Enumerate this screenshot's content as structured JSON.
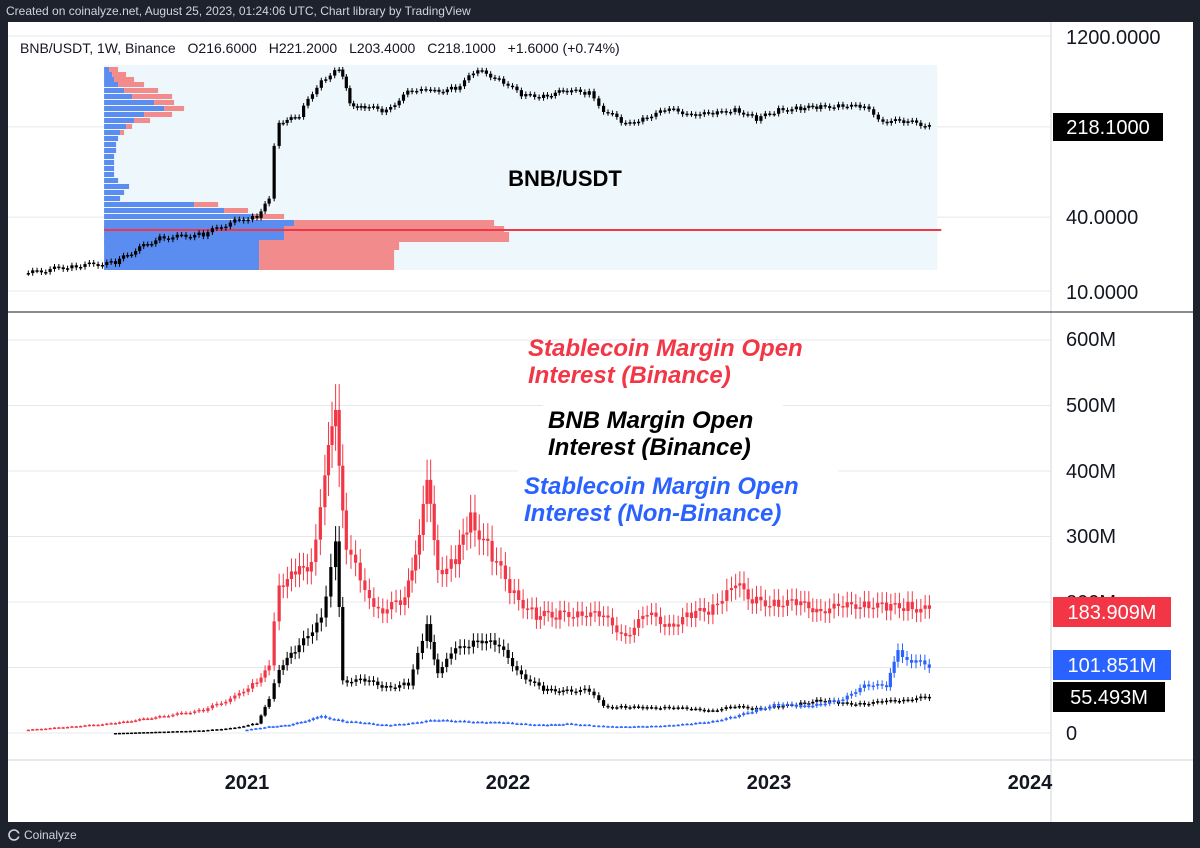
{
  "header": {
    "created_text": "Created on coinalyze.net, August 25, 2023, 01:24:06 UTC, Chart library by TradingView"
  },
  "footer": {
    "brand": "Coinalyze"
  },
  "colors": {
    "red": "#f23645",
    "blue": "#2962ff",
    "black": "#000000",
    "profile_red": "#f28b8b",
    "profile_blue": "#5b8cf0",
    "profile_bg": "#eef7fc"
  },
  "chart_data": [
    {
      "type": "candlestick",
      "title": "BNB/USDT",
      "legend": {
        "symbol": "BNB/USDT, 1W, Binance",
        "o_label": "O",
        "o_value": "216.6000",
        "h_label": "H",
        "h_value": "221.2000",
        "l_label": "L",
        "l_value": "203.4000",
        "c_label": "C",
        "c_value": "218.1000",
        "change": "+1.6000 (+0.74%)"
      },
      "y_scale": "log",
      "y_ticks": [
        {
          "value": 1200,
          "label": "1200.0000"
        },
        {
          "value": 40,
          "label": "40.0000"
        },
        {
          "value": 10,
          "label": "10.0000"
        }
      ],
      "last_price": {
        "value": 218.1,
        "label": "218.1000"
      },
      "x_ticks": [
        "2021",
        "2022",
        "2023",
        "2024"
      ],
      "points": [
        [
          "2020-03-01",
          14
        ],
        [
          "2020-05-01",
          16
        ],
        [
          "2020-07-01",
          17
        ],
        [
          "2020-09-01",
          27
        ],
        [
          "2020-11-01",
          29
        ],
        [
          "2020-12-15",
          37
        ],
        [
          "2021-01-15",
          41
        ],
        [
          "2021-02-01",
          55
        ],
        [
          "2021-02-15",
          240
        ],
        [
          "2021-03-15",
          260
        ],
        [
          "2021-04-15",
          520
        ],
        [
          "2021-05-10",
          650
        ],
        [
          "2021-05-25",
          330
        ],
        [
          "2021-06-15",
          320
        ],
        [
          "2021-07-15",
          290
        ],
        [
          "2021-08-20",
          440
        ],
        [
          "2021-09-15",
          420
        ],
        [
          "2021-10-20",
          450
        ],
        [
          "2021-11-20",
          620
        ],
        [
          "2021-12-20",
          540
        ],
        [
          "2022-01-20",
          390
        ],
        [
          "2022-02-20",
          390
        ],
        [
          "2022-03-25",
          430
        ],
        [
          "2022-04-25",
          410
        ],
        [
          "2022-05-15",
          300
        ],
        [
          "2022-06-15",
          225
        ],
        [
          "2022-07-15",
          265
        ],
        [
          "2022-08-15",
          300
        ],
        [
          "2022-09-15",
          280
        ],
        [
          "2022-10-15",
          275
        ],
        [
          "2022-11-15",
          305
        ],
        [
          "2022-12-15",
          250
        ],
        [
          "2023-01-15",
          300
        ],
        [
          "2023-02-15",
          310
        ],
        [
          "2023-03-15",
          315
        ],
        [
          "2023-04-15",
          330
        ],
        [
          "2023-05-15",
          310
        ],
        [
          "2023-06-10",
          245
        ],
        [
          "2023-07-15",
          240
        ],
        [
          "2023-08-20",
          218
        ]
      ]
    },
    {
      "type": "candlestick",
      "y_ticks": [
        {
          "value": 600,
          "label": "600M"
        },
        {
          "value": 500,
          "label": "500M"
        },
        {
          "value": 400,
          "label": "400M"
        },
        {
          "value": 300,
          "label": "300M"
        },
        {
          "value": 200,
          "label": "200M"
        },
        {
          "value": 0,
          "label": "0"
        }
      ],
      "y_unit": "M",
      "ylim": [
        0,
        630
      ],
      "annotations": [
        {
          "text_line1": "Stablecoin Margin Open",
          "text_line2": "Interest (Binance)",
          "color": "#f23645"
        },
        {
          "text_line1": "BNB Margin Open",
          "text_line2": "Interest (Binance)",
          "color": "#000000"
        },
        {
          "text_line1": "Stablecoin Margin Open",
          "text_line2": "Interest (Non-Binance)",
          "color": "#2962ff"
        }
      ],
      "last_values": [
        {
          "label": "183.909M",
          "value": 183.909,
          "color": "#f23645"
        },
        {
          "label": "101.851M",
          "value": 101.851,
          "color": "#2962ff"
        },
        {
          "label": "55.493M",
          "value": 55.493,
          "color": "#000000"
        }
      ],
      "series": [
        {
          "color": "#f23645",
          "points": [
            [
              "2020-03-01",
              5
            ],
            [
              "2020-05-01",
              10
            ],
            [
              "2020-07-01",
              15
            ],
            [
              "2020-09-01",
              25
            ],
            [
              "2020-11-01",
              35
            ],
            [
              "2020-12-15",
              55
            ],
            [
              "2021-01-15",
              80
            ],
            [
              "2021-02-01",
              100
            ],
            [
              "2021-02-15",
              230
            ],
            [
              "2021-03-10",
              240
            ],
            [
              "2021-04-01",
              260
            ],
            [
              "2021-04-20",
              400
            ],
            [
              "2021-05-05",
              480
            ],
            [
              "2021-05-20",
              290
            ],
            [
              "2021-06-15",
              210
            ],
            [
              "2021-07-10",
              190
            ],
            [
              "2021-08-10",
              200
            ],
            [
              "2021-08-25",
              280
            ],
            [
              "2021-09-10",
              380
            ],
            [
              "2021-09-25",
              250
            ],
            [
              "2021-10-20",
              260
            ],
            [
              "2021-11-10",
              330
            ],
            [
              "2021-12-10",
              270
            ],
            [
              "2022-01-10",
              210
            ],
            [
              "2022-02-10",
              180
            ],
            [
              "2022-03-15",
              180
            ],
            [
              "2022-04-15",
              185
            ],
            [
              "2022-05-15",
              175
            ],
            [
              "2022-06-15",
              150
            ],
            [
              "2022-07-15",
              180
            ],
            [
              "2022-08-15",
              165
            ],
            [
              "2022-09-15",
              180
            ],
            [
              "2022-10-15",
              190
            ],
            [
              "2022-11-10",
              230
            ],
            [
              "2022-12-15",
              200
            ],
            [
              "2023-01-15",
              200
            ],
            [
              "2023-02-15",
              195
            ],
            [
              "2023-03-15",
              190
            ],
            [
              "2023-04-15",
              190
            ],
            [
              "2023-05-15",
              200
            ],
            [
              "2023-06-15",
              190
            ],
            [
              "2023-07-15",
              195
            ],
            [
              "2023-08-20",
              184
            ]
          ]
        },
        {
          "color": "#000000",
          "points": [
            [
              "2020-07-01",
              0
            ],
            [
              "2020-09-01",
              2
            ],
            [
              "2020-11-01",
              4
            ],
            [
              "2020-12-15",
              8
            ],
            [
              "2021-01-15",
              15
            ],
            [
              "2021-02-01",
              50
            ],
            [
              "2021-02-15",
              100
            ],
            [
              "2021-03-15",
              130
            ],
            [
              "2021-04-15",
              180
            ],
            [
              "2021-05-05",
              290
            ],
            [
              "2021-05-15",
              80
            ],
            [
              "2021-06-15",
              80
            ],
            [
              "2021-07-15",
              70
            ],
            [
              "2021-08-15",
              75
            ],
            [
              "2021-09-10",
              160
            ],
            [
              "2021-09-25",
              95
            ],
            [
              "2021-10-20",
              125
            ],
            [
              "2021-11-20",
              145
            ],
            [
              "2021-12-20",
              130
            ],
            [
              "2022-01-20",
              90
            ],
            [
              "2022-02-20",
              65
            ],
            [
              "2022-03-25",
              65
            ],
            [
              "2022-04-25",
              65
            ],
            [
              "2022-05-15",
              40
            ],
            [
              "2022-06-15",
              40
            ],
            [
              "2022-07-15",
              38
            ],
            [
              "2022-08-15",
              40
            ],
            [
              "2022-09-15",
              36
            ],
            [
              "2022-10-15",
              35
            ],
            [
              "2022-11-15",
              40
            ],
            [
              "2022-12-15",
              38
            ],
            [
              "2023-01-15",
              40
            ],
            [
              "2023-02-15",
              45
            ],
            [
              "2023-03-15",
              50
            ],
            [
              "2023-04-15",
              45
            ],
            [
              "2023-05-15",
              45
            ],
            [
              "2023-06-15",
              48
            ],
            [
              "2023-07-15",
              52
            ],
            [
              "2023-08-20",
              55
            ]
          ]
        },
        {
          "color": "#2962ff",
          "points": [
            [
              "2021-01-01",
              5
            ],
            [
              "2021-02-01",
              10
            ],
            [
              "2021-03-01",
              12
            ],
            [
              "2021-04-15",
              25
            ],
            [
              "2021-05-15",
              18
            ],
            [
              "2021-06-15",
              15
            ],
            [
              "2021-07-15",
              12
            ],
            [
              "2021-08-15",
              14
            ],
            [
              "2021-09-15",
              20
            ],
            [
              "2021-10-20",
              18
            ],
            [
              "2021-11-20",
              17
            ],
            [
              "2021-12-20",
              16
            ],
            [
              "2022-01-20",
              14
            ],
            [
              "2022-02-20",
              12
            ],
            [
              "2022-03-25",
              14
            ],
            [
              "2022-04-25",
              12
            ],
            [
              "2022-05-15",
              10
            ],
            [
              "2022-06-15",
              10
            ],
            [
              "2022-07-15",
              10
            ],
            [
              "2022-08-15",
              12
            ],
            [
              "2022-09-15",
              14
            ],
            [
              "2022-10-15",
              18
            ],
            [
              "2022-11-15",
              25
            ],
            [
              "2022-12-15",
              35
            ],
            [
              "2023-01-15",
              45
            ],
            [
              "2023-02-15",
              40
            ],
            [
              "2023-03-15",
              45
            ],
            [
              "2023-04-15",
              50
            ],
            [
              "2023-05-15",
              75
            ],
            [
              "2023-06-15",
              70
            ],
            [
              "2023-07-01",
              125
            ],
            [
              "2023-07-20",
              110
            ],
            [
              "2023-08-20",
              102
            ]
          ]
        }
      ]
    }
  ]
}
